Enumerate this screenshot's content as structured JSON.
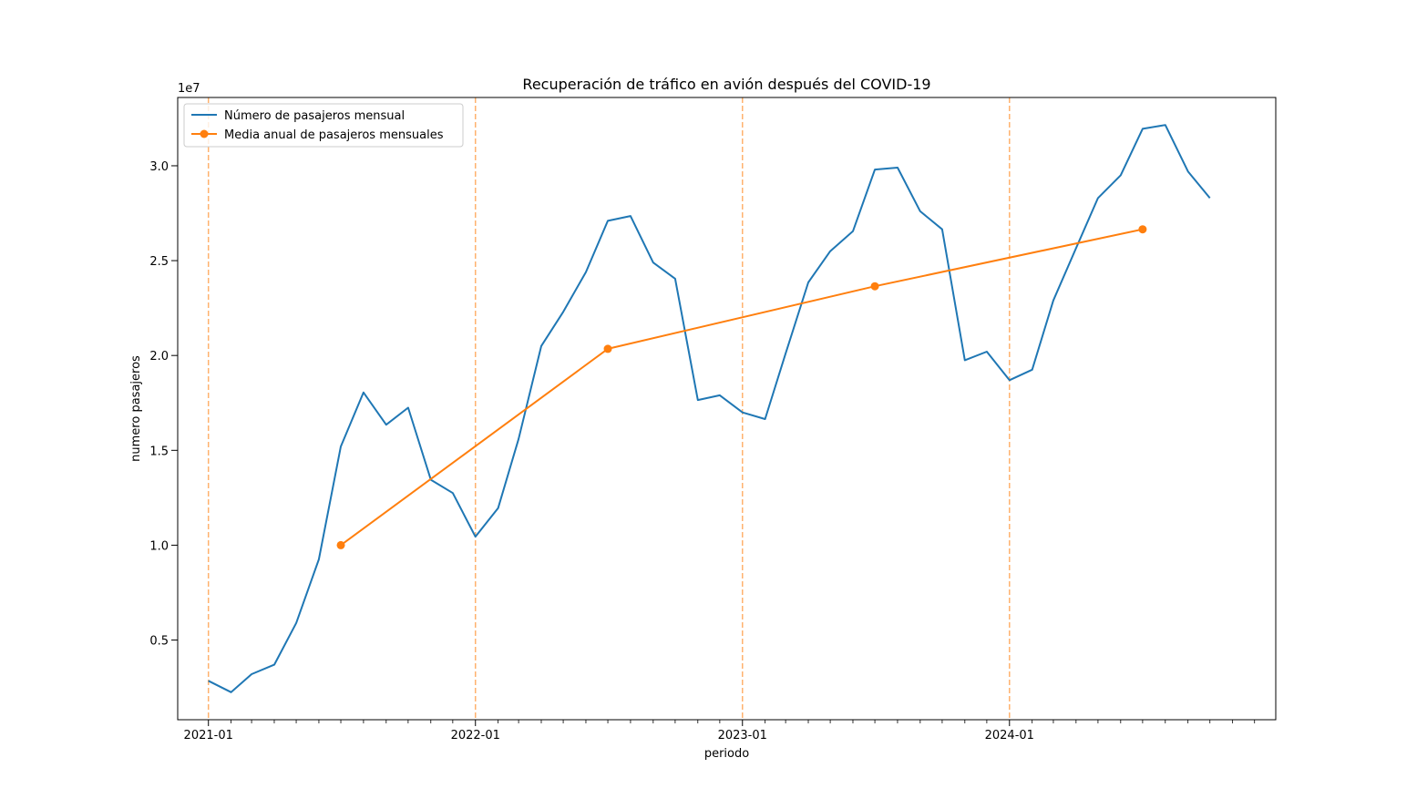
{
  "chart_data": {
    "type": "line",
    "title": "Recuperación de tráfico en avión después del COVID-19",
    "xlabel": "periodo",
    "ylabel": "numero pasajeros",
    "y_offset_label": "1e7",
    "y_scale_factor": 10000000,
    "ylim": [
      800000,
      33600000
    ],
    "xlim": [
      "2020-11-20",
      "2024-12-30"
    ],
    "x_ticks": [
      "2021-01",
      "2022-01",
      "2023-01",
      "2024-01"
    ],
    "y_ticks": [
      {
        "value": 5000000,
        "label": "0.5"
      },
      {
        "value": 10000000,
        "label": "1.0"
      },
      {
        "value": 15000000,
        "label": "1.5"
      },
      {
        "value": 20000000,
        "label": "2.0"
      },
      {
        "value": 25000000,
        "label": "2.5"
      },
      {
        "value": 30000000,
        "label": "3.0"
      }
    ],
    "minor_x_ticks": "monthly",
    "vertical_lines": [
      "2021-01",
      "2022-01",
      "2023-01",
      "2024-01"
    ],
    "legend_position": "upper-left",
    "grid": false,
    "series": [
      {
        "name": "Número de pasajeros mensual",
        "color": "#1f77b4",
        "marker": "none",
        "x": [
          "2021-01",
          "2021-02",
          "2021-03",
          "2021-04",
          "2021-05",
          "2021-06",
          "2021-07",
          "2021-08",
          "2021-09",
          "2021-10",
          "2021-11",
          "2021-12",
          "2022-01",
          "2022-02",
          "2022-03",
          "2022-04",
          "2022-05",
          "2022-06",
          "2022-07",
          "2022-08",
          "2022-09",
          "2022-10",
          "2022-11",
          "2022-12",
          "2023-01",
          "2023-02",
          "2023-03",
          "2023-04",
          "2023-05",
          "2023-06",
          "2023-07",
          "2023-08",
          "2023-09",
          "2023-10",
          "2023-11",
          "2023-12",
          "2024-01",
          "2024-02",
          "2024-03",
          "2024-04",
          "2024-05",
          "2024-06",
          "2024-07",
          "2024-08",
          "2024-09",
          "2024-10"
        ],
        "values": [
          2850000,
          2250000,
          3200000,
          3700000,
          5900000,
          9250000,
          15200000,
          18050000,
          16350000,
          17250000,
          13450000,
          12750000,
          10450000,
          11950000,
          15600000,
          20500000,
          22300000,
          24400000,
          27100000,
          27350000,
          24900000,
          24050000,
          17650000,
          17900000,
          17000000,
          16650000,
          20100000,
          23850000,
          25500000,
          26550000,
          29800000,
          29900000,
          27600000,
          26650000,
          19750000,
          20200000,
          18700000,
          19250000,
          22900000,
          25650000,
          28300000,
          29500000,
          31950000,
          32150000,
          29700000,
          28300000
        ]
      },
      {
        "name": "Media anual de pasajeros mensuales",
        "color": "#ff7f0e",
        "marker": "circle",
        "x": [
          "2021-07",
          "2022-07",
          "2023-07",
          "2024-07"
        ],
        "values": [
          10000000,
          20350000,
          23650000,
          26650000
        ]
      }
    ]
  }
}
